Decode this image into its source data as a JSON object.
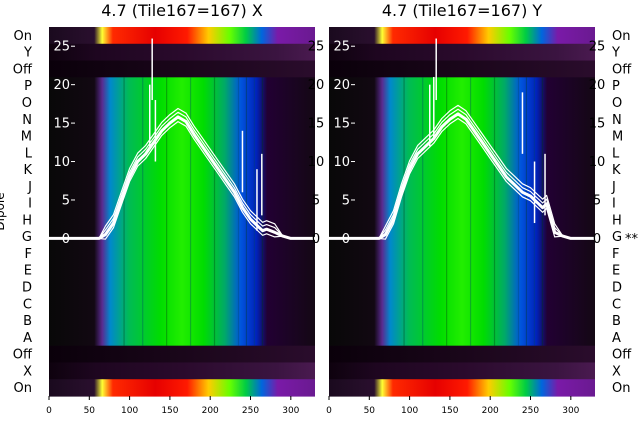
{
  "figure": {
    "ylabel": "Dipole",
    "marker": "**"
  },
  "dipole_rows": [
    "On",
    "Y",
    "Off",
    "P",
    "O",
    "N",
    "M",
    "L",
    "K",
    "J",
    "I",
    "H",
    "G",
    "F",
    "E",
    "D",
    "C",
    "B",
    "A",
    "Off",
    "X",
    "On"
  ],
  "chart_data": [
    {
      "type": "heatmap",
      "title": "4.7 (Tile167=167) X",
      "xlabel": "",
      "ylabel": "Dipole",
      "xlim": [
        0,
        330
      ],
      "xticks": [
        0,
        50,
        100,
        150,
        200,
        250,
        300
      ],
      "overlay_yticks": [
        0,
        5,
        10,
        15,
        20,
        25
      ],
      "overlay_ylim": [
        -20.5,
        27.5
      ],
      "colormap": "nipy_spectral",
      "rows": [
        {
          "label": "On",
          "level": 1.0
        },
        {
          "label": "Y",
          "level": 0.02
        },
        {
          "label": "Off",
          "level": 0.0
        },
        {
          "label": "P",
          "level": 0.6
        },
        {
          "label": "O",
          "level": 0.6
        },
        {
          "label": "N",
          "level": 0.6
        },
        {
          "label": "M",
          "level": 0.6
        },
        {
          "label": "L",
          "level": 0.6
        },
        {
          "label": "K",
          "level": 0.6
        },
        {
          "label": "J",
          "level": 0.6
        },
        {
          "label": "I",
          "level": 0.6
        },
        {
          "label": "H",
          "level": 0.6
        },
        {
          "label": "G",
          "level": 0.6
        },
        {
          "label": "F",
          "level": 0.6
        },
        {
          "label": "E",
          "level": 0.6
        },
        {
          "label": "D",
          "level": 0.6
        },
        {
          "label": "C",
          "level": 0.6
        },
        {
          "label": "B",
          "level": 0.6
        },
        {
          "label": "A",
          "level": 0.6
        },
        {
          "label": "Off",
          "level": 0.0
        },
        {
          "label": "X",
          "level": 0.02
        },
        {
          "label": "On",
          "level": 1.0
        }
      ],
      "overlay_curve": {
        "x": [
          0,
          50,
          62,
          70,
          80,
          90,
          100,
          110,
          120,
          130,
          140,
          150,
          160,
          170,
          180,
          190,
          200,
          210,
          220,
          230,
          240,
          250,
          255,
          260,
          265,
          270,
          280,
          290,
          300,
          330
        ],
        "y": [
          0,
          0,
          0,
          0.5,
          2,
          5,
          8,
          10,
          11,
          12.5,
          14,
          15,
          15.8,
          15.2,
          13.5,
          12,
          10.5,
          9,
          7.5,
          6,
          4,
          2.5,
          2,
          1.5,
          1,
          1.2,
          0.8,
          0.3,
          0,
          0
        ]
      },
      "overlay_spikes": [
        {
          "x": 125,
          "y": 20
        },
        {
          "x": 128,
          "y": 26
        },
        {
          "x": 132,
          "y": 18
        },
        {
          "x": 240,
          "y": 14
        },
        {
          "x": 258,
          "y": 9
        },
        {
          "x": 264,
          "y": 11
        }
      ]
    },
    {
      "type": "heatmap",
      "title": "4.7 (Tile167=167) Y",
      "xlabel": "",
      "ylabel": "",
      "xlim": [
        0,
        330
      ],
      "xticks": [
        0,
        50,
        100,
        150,
        200,
        250,
        300
      ],
      "overlay_yticks": [
        0,
        5,
        10,
        15,
        20,
        25
      ],
      "overlay_ylim": [
        -20.5,
        27.5
      ],
      "colormap": "nipy_spectral",
      "flagged_row": "G",
      "rows": [
        {
          "label": "On",
          "level": 1.0
        },
        {
          "label": "Y",
          "level": 0.02
        },
        {
          "label": "Off",
          "level": 0.0
        },
        {
          "label": "P",
          "level": 0.6
        },
        {
          "label": "O",
          "level": 0.6
        },
        {
          "label": "N",
          "level": 0.6
        },
        {
          "label": "M",
          "level": 0.6
        },
        {
          "label": "L",
          "level": 0.6
        },
        {
          "label": "K",
          "level": 0.6
        },
        {
          "label": "J",
          "level": 0.6
        },
        {
          "label": "I",
          "level": 0.6
        },
        {
          "label": "H",
          "level": 0.6
        },
        {
          "label": "G",
          "level": 0.6
        },
        {
          "label": "F",
          "level": 0.6
        },
        {
          "label": "E",
          "level": 0.6
        },
        {
          "label": "D",
          "level": 0.6
        },
        {
          "label": "C",
          "level": 0.6
        },
        {
          "label": "B",
          "level": 0.6
        },
        {
          "label": "A",
          "level": 0.6
        },
        {
          "label": "Off",
          "level": 0.0
        },
        {
          "label": "X",
          "level": 0.02
        },
        {
          "label": "On",
          "level": 1.0
        }
      ],
      "overlay_curve": {
        "x": [
          0,
          50,
          62,
          70,
          80,
          90,
          100,
          110,
          120,
          130,
          140,
          150,
          160,
          170,
          180,
          190,
          200,
          210,
          220,
          230,
          240,
          250,
          255,
          260,
          265,
          270,
          280,
          290,
          300,
          330
        ],
        "y": [
          0,
          0,
          0,
          0.5,
          2.5,
          6,
          9,
          11,
          12,
          13,
          14.5,
          15.5,
          16.2,
          15.5,
          14,
          12.5,
          11,
          9.5,
          8,
          7,
          6,
          5.5,
          5,
          4.5,
          4,
          4.5,
          0.8,
          0.3,
          0,
          0
        ]
      },
      "overlay_spikes": [
        {
          "x": 125,
          "y": 20
        },
        {
          "x": 130,
          "y": 21
        },
        {
          "x": 133,
          "y": 26
        },
        {
          "x": 240,
          "y": 19
        },
        {
          "x": 255,
          "y": 10
        },
        {
          "x": 268,
          "y": 11
        }
      ]
    }
  ]
}
